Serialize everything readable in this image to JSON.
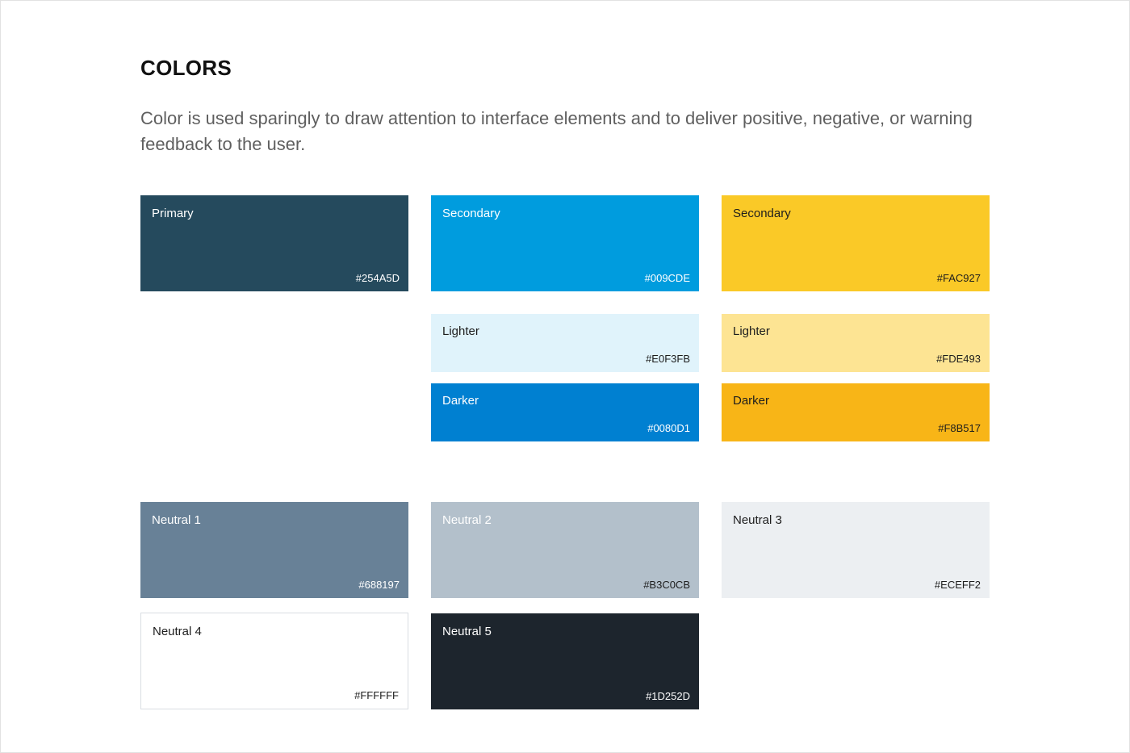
{
  "header": {
    "title": "COLORS",
    "description": "Color is used sparingly to draw attention to interface elements and to deliver positive, negative, or warning feedback to the user."
  },
  "swatches": {
    "primary": {
      "label": "Primary",
      "hex": "#254A5D",
      "color": "#254A5D"
    },
    "secondary_blue": {
      "label": "Secondary",
      "hex": "#009CDE",
      "color": "#009CDE"
    },
    "secondary_yellow": {
      "label": "Secondary",
      "hex": "#FAC927",
      "color": "#FAC927"
    },
    "blue_lighter": {
      "label": "Lighter",
      "hex": "#E0F3FB",
      "color": "#E0F3FB"
    },
    "yellow_lighter": {
      "label": "Lighter",
      "hex": "#FDE493",
      "color": "#FDE493"
    },
    "blue_darker": {
      "label": "Darker",
      "hex": "#0080D1",
      "color": "#0080D1"
    },
    "yellow_darker": {
      "label": "Darker",
      "hex": "#F8B517",
      "color": "#F8B517"
    },
    "neutral_1": {
      "label": "Neutral 1",
      "hex": "#688197",
      "color": "#688197"
    },
    "neutral_2": {
      "label": "Neutral 2",
      "hex": "#B3C0CB",
      "color": "#B3C0CB"
    },
    "neutral_3": {
      "label": "Neutral 3",
      "hex": "#ECEFF2",
      "color": "#ECEFF2"
    },
    "neutral_4": {
      "label": "Neutral 4",
      "hex": "#FFFFFF",
      "color": "#FFFFFF"
    },
    "neutral_5": {
      "label": "Neutral 5",
      "hex": "#1D252D",
      "color": "#1D252D"
    }
  }
}
